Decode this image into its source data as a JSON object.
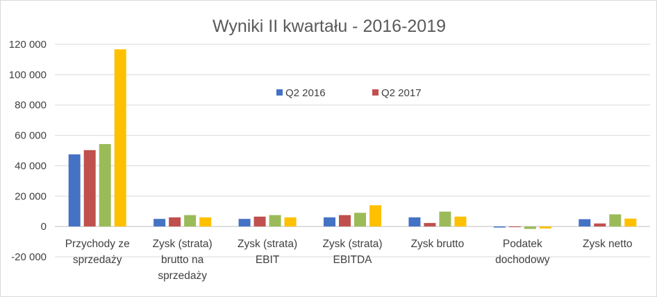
{
  "chart_data": {
    "type": "bar",
    "title": "Wyniki II kwartału - 2016-2019",
    "categories": [
      [
        "Przychody ze",
        "sprzedaży"
      ],
      [
        "Zysk (strata)",
        "brutto na",
        "sprzedaży"
      ],
      [
        "Zysk (strata)",
        "EBIT"
      ],
      [
        "Zysk (strata)",
        "EBITDA"
      ],
      [
        "Zysk brutto"
      ],
      [
        "Podatek",
        "dochodowy"
      ],
      [
        "Zysk netto"
      ]
    ],
    "series": [
      {
        "name": "Q2 2016",
        "color": "#4472c4",
        "values": [
          47500,
          5000,
          5000,
          6000,
          6000,
          -700,
          4800
        ]
      },
      {
        "name": "Q2 2017",
        "color": "#c0504d",
        "values": [
          50300,
          6000,
          6500,
          7500,
          2300,
          -200,
          2000
        ]
      },
      {
        "color": "#9bbb59",
        "values": [
          54300,
          7500,
          7500,
          9000,
          9800,
          -1600,
          8000
        ]
      },
      {
        "color": "#ffc000",
        "values": [
          116700,
          6000,
          6000,
          14000,
          6500,
          -1300,
          5200
        ]
      }
    ],
    "y_ticks": [
      "120 000",
      "100 000",
      "80 000",
      "60 000",
      "40 000",
      "20 000",
      "0",
      "-20 000"
    ],
    "ylim": [
      -20000,
      120000
    ],
    "legend_position": "top-center",
    "grid": true
  }
}
